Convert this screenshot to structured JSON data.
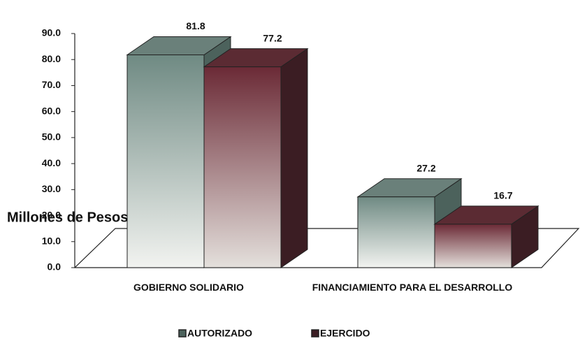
{
  "chart_data": {
    "type": "bar3d",
    "y_label": "Millones de Pesos",
    "categories": [
      "GOBIERNO SOLIDARIO",
      "FINANCIAMIENTO PARA EL DESARROLLO"
    ],
    "series": [
      {
        "name": "AUTORIZADO",
        "color": "#6f8a83",
        "values": [
          81.8,
          27.2
        ]
      },
      {
        "name": "EJERCIDO",
        "color": "#6b2a36",
        "values": [
          77.2,
          16.7
        ]
      }
    ],
    "ylim": [
      0,
      90
    ],
    "yticks": [
      {
        "value": 0,
        "label": "0.0"
      },
      {
        "value": 10,
        "label": "10.0"
      },
      {
        "value": 20,
        "label": "20.0"
      },
      {
        "value": 30,
        "label": "30.0"
      },
      {
        "value": 40,
        "label": "40.0"
      },
      {
        "value": 50,
        "label": "50.0"
      },
      {
        "value": 60,
        "label": "60.0"
      },
      {
        "value": 70,
        "label": "70.0"
      },
      {
        "value": 80,
        "label": "80.0"
      },
      {
        "value": 90,
        "label": "90.0"
      }
    ],
    "legend": "bottom"
  }
}
